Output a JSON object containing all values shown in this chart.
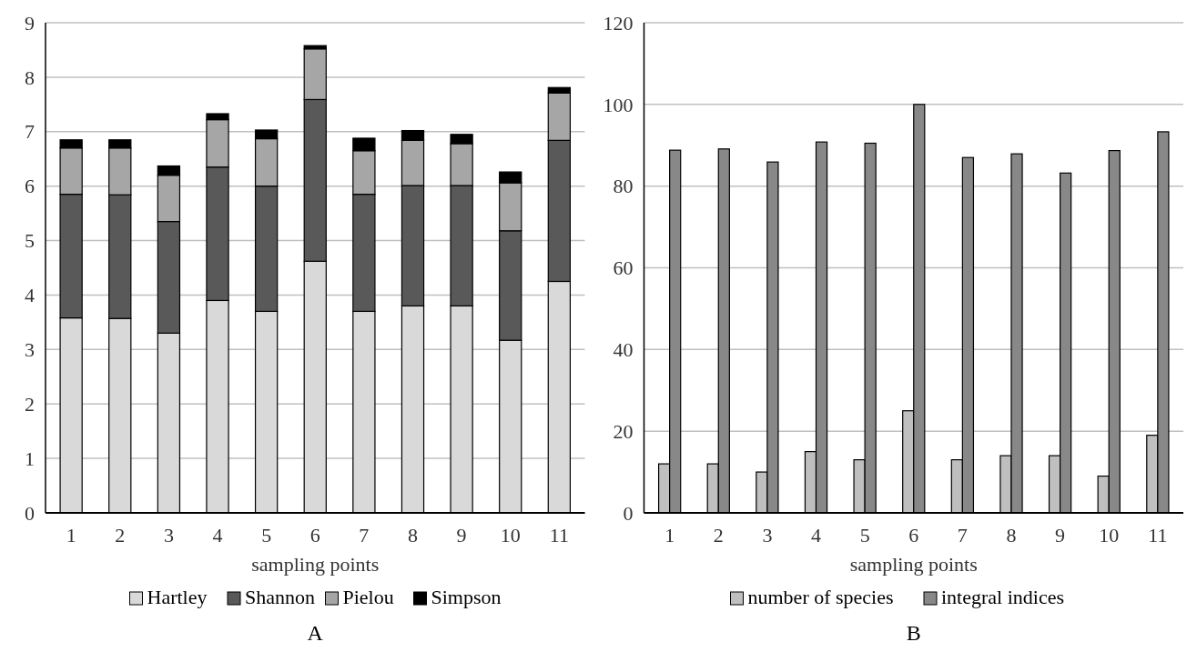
{
  "chart_data": [
    {
      "type": "bar",
      "title": "A",
      "xlabel": "sampling points",
      "stacked": true,
      "categories": [
        "1",
        "2",
        "3",
        "4",
        "5",
        "6",
        "7",
        "8",
        "9",
        "10",
        "11"
      ],
      "series": [
        {
          "name": "Hartley",
          "color": "#d9d9d9",
          "values": [
            3.58,
            3.57,
            3.3,
            3.9,
            3.7,
            4.62,
            3.7,
            3.8,
            3.8,
            3.17,
            4.25
          ]
        },
        {
          "name": "Shannon",
          "color": "#595959",
          "values": [
            2.27,
            2.27,
            2.05,
            2.45,
            2.3,
            2.97,
            2.15,
            2.21,
            2.21,
            2.01,
            2.59
          ]
        },
        {
          "name": "Pielou",
          "color": "#a6a6a6",
          "values": [
            0.85,
            0.86,
            0.85,
            0.87,
            0.87,
            0.93,
            0.8,
            0.83,
            0.77,
            0.88,
            0.87
          ]
        },
        {
          "name": "Simpson",
          "color": "#000000",
          "values": [
            0.15,
            0.15,
            0.17,
            0.11,
            0.16,
            0.06,
            0.23,
            0.18,
            0.17,
            0.2,
            0.1
          ]
        }
      ],
      "ylim": [
        0,
        9
      ],
      "yticks": [
        0,
        1,
        2,
        3,
        4,
        5,
        6,
        7,
        8,
        9
      ],
      "grid": "y",
      "legend": "bottom"
    },
    {
      "type": "bar",
      "title": "B",
      "xlabel": "sampling points",
      "categories": [
        "1",
        "2",
        "3",
        "4",
        "5",
        "6",
        "7",
        "8",
        "9",
        "10",
        "11"
      ],
      "series": [
        {
          "name": "number of species",
          "color": "#bfbfbf",
          "values": [
            12,
            12,
            10,
            15,
            13,
            25,
            13,
            14,
            14,
            9,
            19
          ]
        },
        {
          "name": "integral indices",
          "color": "#888888",
          "values": [
            88.8,
            89.1,
            85.9,
            90.8,
            90.5,
            100,
            87.0,
            87.9,
            83.2,
            88.7,
            93.3
          ]
        }
      ],
      "ylim": [
        0,
        120
      ],
      "yticks": [
        0,
        20,
        40,
        60,
        80,
        100,
        120
      ],
      "grid": "y",
      "legend": "bottom"
    }
  ]
}
